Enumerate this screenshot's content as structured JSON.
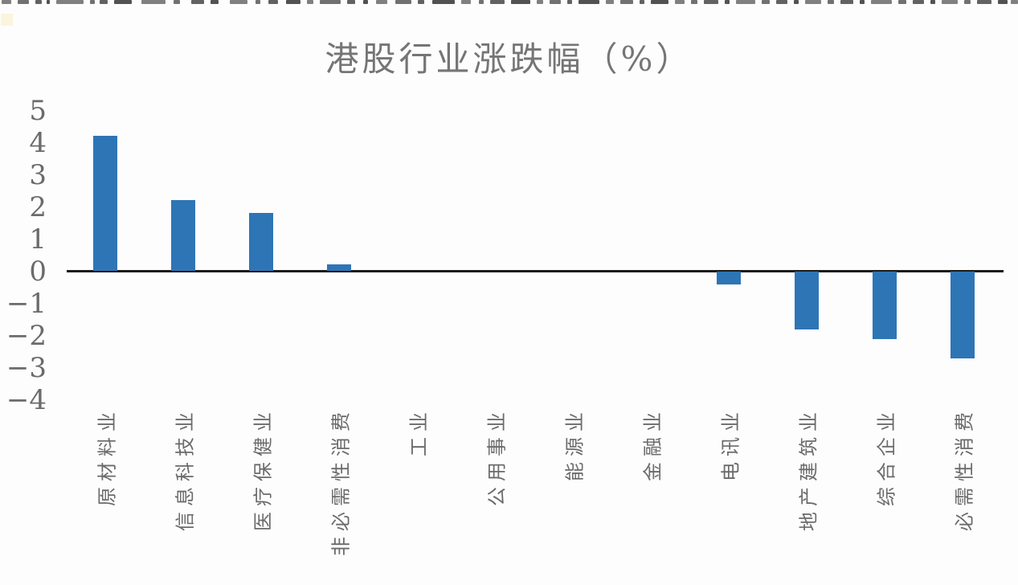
{
  "chart_data": {
    "type": "bar",
    "title": "港股行业涨跌幅（%）",
    "categories": [
      "原材料业",
      "信息科技业",
      "医疗保健业",
      "非必需性消费",
      "工业",
      "公用事业",
      "能源业",
      "金融业",
      "电讯业",
      "地产建筑业",
      "综合企业",
      "必需性消费"
    ],
    "values": [
      4.2,
      2.2,
      1.8,
      0.2,
      0,
      0,
      0,
      0,
      -0.4,
      -1.8,
      -2.1,
      -2.7
    ],
    "yticks": [
      5,
      4,
      3,
      2,
      1,
      0,
      -1,
      -2,
      -3,
      -4
    ],
    "ylim": [
      -4,
      5
    ],
    "xlabel": "",
    "ylabel": "",
    "grid": false,
    "legend": false,
    "bar_color": "#2e75b6",
    "axis_line_color": "#1c1c1c",
    "text_color": "#6b6b6b",
    "title_color": "#757575",
    "background_color": "#fdfdfd"
  }
}
